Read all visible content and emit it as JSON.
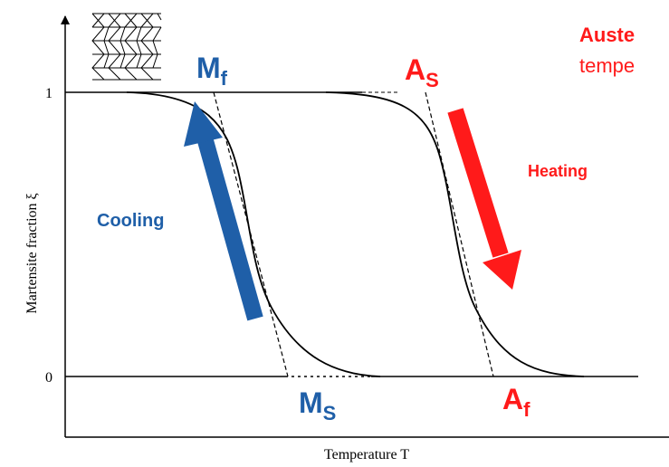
{
  "axes": {
    "y_label": "Martensite fraction ξ",
    "x_label": "Temperature T",
    "y_ticks": [
      "1",
      "0"
    ]
  },
  "labels": {
    "m_f": {
      "main": "M",
      "sub": "f"
    },
    "a_s": {
      "main": "A",
      "sub": "S"
    },
    "m_s": {
      "main": "M",
      "sub": "S"
    },
    "a_f": {
      "main": "A",
      "sub": "f"
    }
  },
  "arrows": {
    "cooling": "Cooling",
    "heating": "Heating"
  },
  "note": {
    "line1": "Auste",
    "line2": "tempe"
  }
}
